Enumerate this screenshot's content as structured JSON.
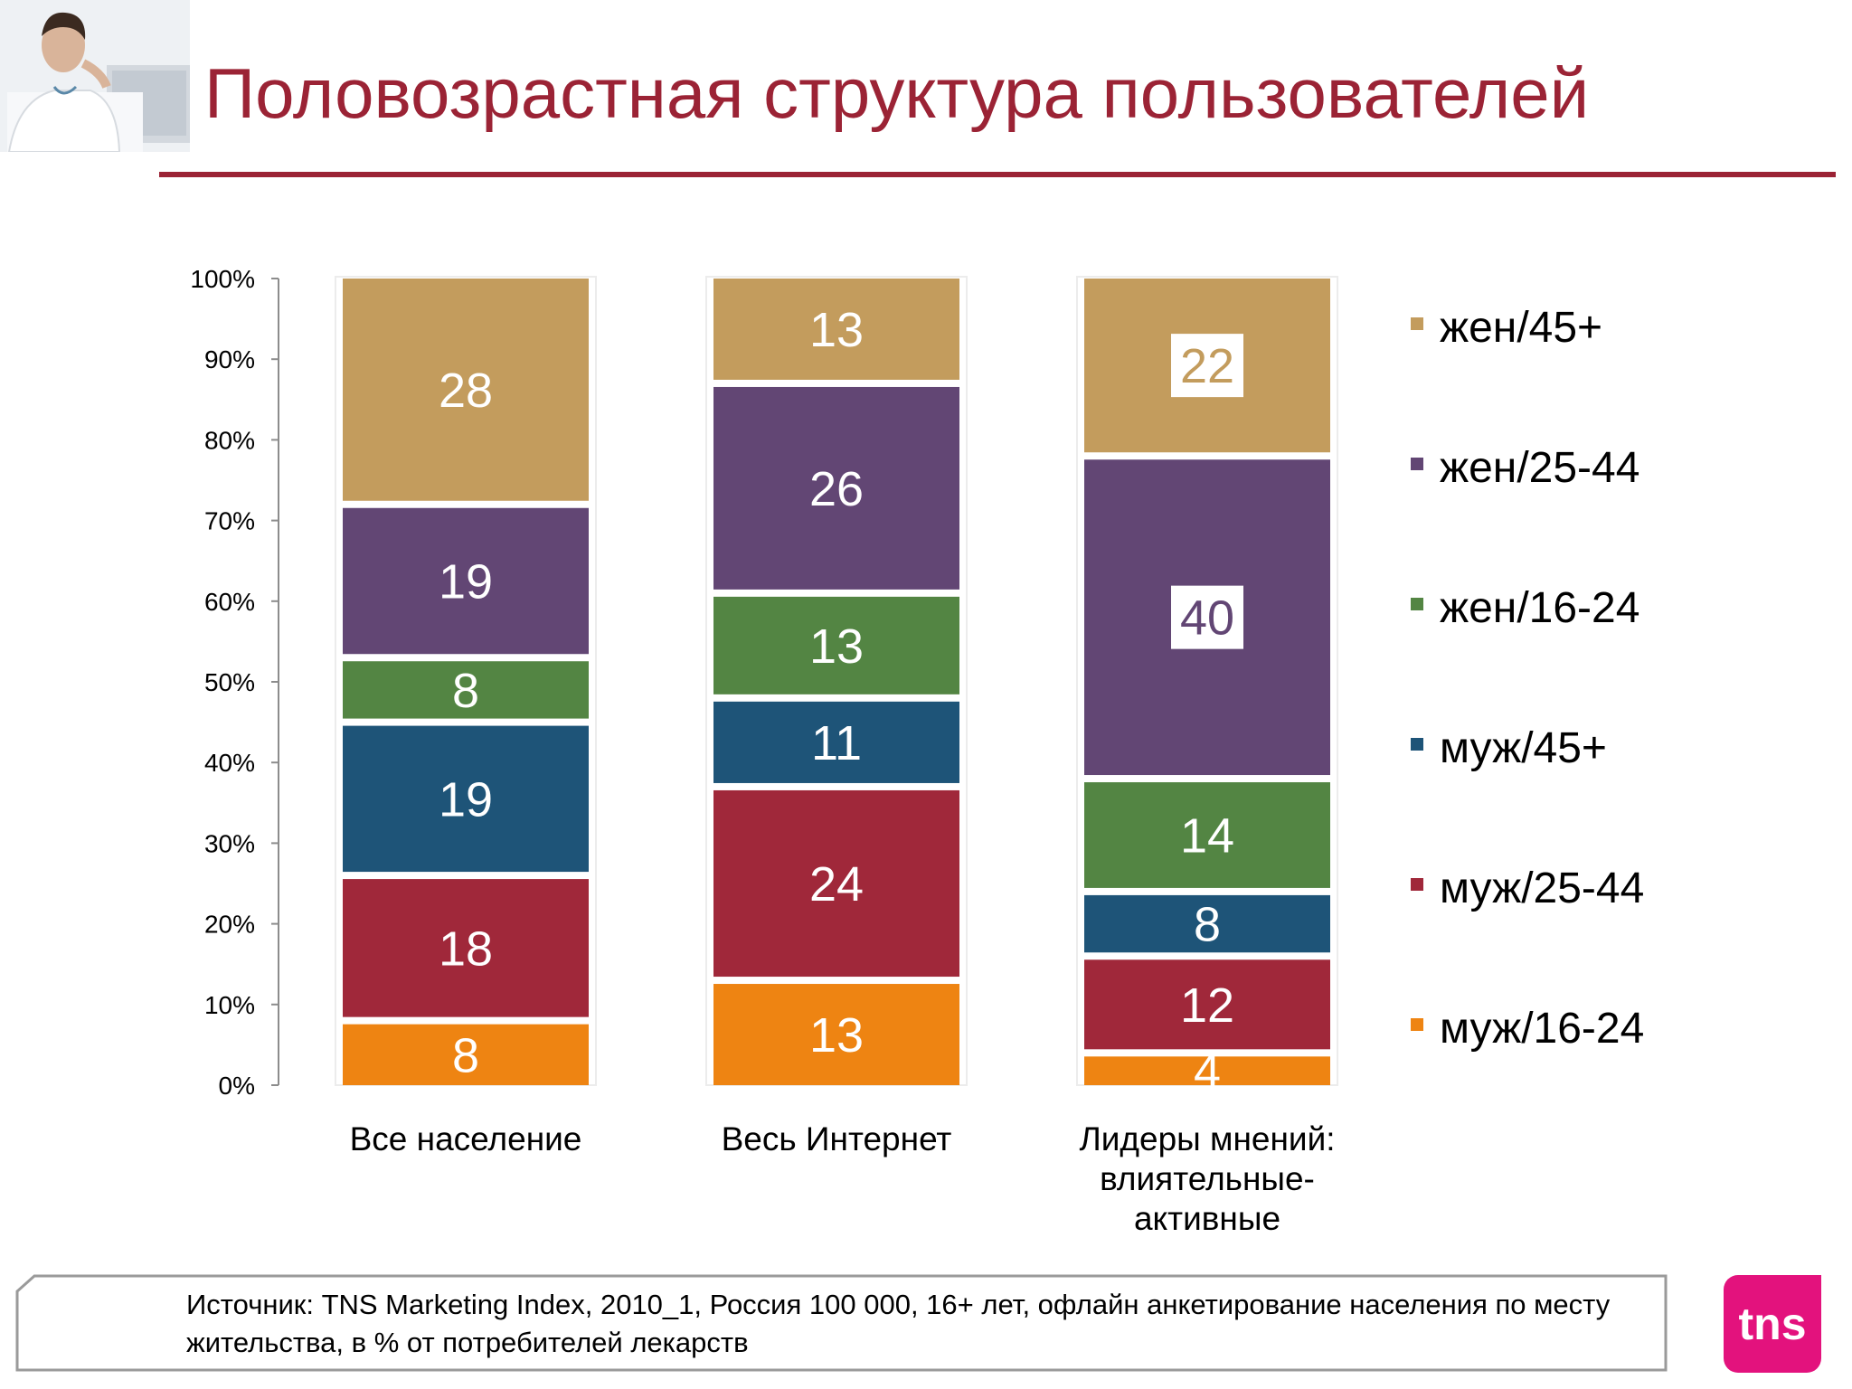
{
  "header": {
    "title": "Половозрастная структура пользователей"
  },
  "chart_data": {
    "type": "bar",
    "stacked": true,
    "categories": [
      "Все население",
      "Весь Интернет",
      "Лидеры мнений: влиятельные-активные"
    ],
    "category_lines": [
      [
        "Все население"
      ],
      [
        "Весь Интернет"
      ],
      [
        "Лидеры мнений:",
        "влиятельные-",
        "активные"
      ]
    ],
    "series": [
      {
        "name": "муж/16-24",
        "color": "#ee8412",
        "values": [
          8,
          13,
          4
        ]
      },
      {
        "name": "муж/25-44",
        "color": "#a0283a",
        "values": [
          18,
          24,
          12
        ]
      },
      {
        "name": "муж/45+",
        "color": "#1e5478",
        "values": [
          19,
          11,
          8
        ]
      },
      {
        "name": "жен/16-24",
        "color": "#538543",
        "values": [
          8,
          13,
          14
        ]
      },
      {
        "name": "жен/25-44",
        "color": "#624674",
        "values": [
          19,
          26,
          40
        ]
      },
      {
        "name": "жен/45+",
        "color": "#c39c5d",
        "values": [
          28,
          13,
          22
        ]
      }
    ],
    "boxed_labels": [
      {
        "series": "жен/45+",
        "category": "Лидеры мнений: влиятельные-активные"
      },
      {
        "series": "жен/25-44",
        "category": "Лидеры мнений: влиятельные-активные"
      }
    ],
    "y_ticks": [
      "0%",
      "10%",
      "20%",
      "30%",
      "40%",
      "50%",
      "60%",
      "70%",
      "80%",
      "90%",
      "100%"
    ],
    "ylim": [
      0,
      100
    ],
    "legend_order": [
      "жен/45+",
      "жен/25-44",
      "жен/16-24",
      "муж/45+",
      "муж/25-44",
      "муж/16-24"
    ],
    "legend_position": "right"
  },
  "footer": {
    "source": "Источник: TNS Marketing Index, 2010_1, Россия 100 000, 16+ лет, офлайн анкетирование населения по месту жительства, в % от потребителей лекарств",
    "logo_text": "tns"
  }
}
